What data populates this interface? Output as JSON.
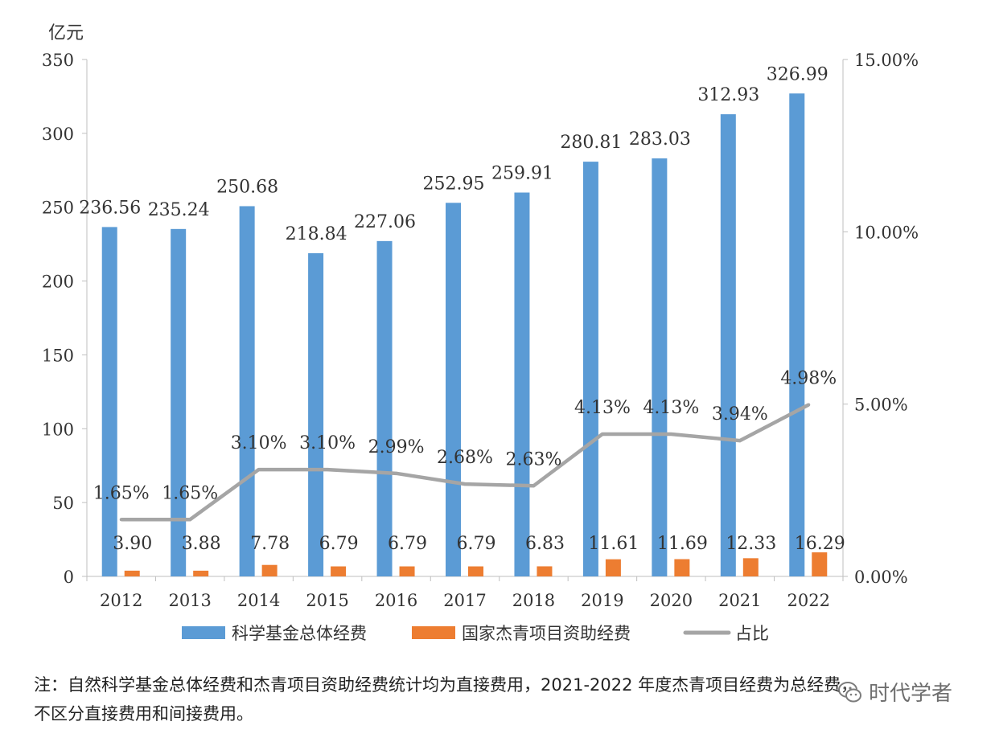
{
  "chart_data": {
    "type": "bar",
    "y_unit_label": "亿元",
    "categories": [
      "2012",
      "2013",
      "2014",
      "2015",
      "2016",
      "2017",
      "2018",
      "2019",
      "2020",
      "2021",
      "2022"
    ],
    "y_left": {
      "min": 0,
      "max": 350,
      "ticks": [
        0,
        50,
        100,
        150,
        200,
        250,
        300,
        350
      ],
      "tick_labels": [
        "0",
        "50",
        "100",
        "150",
        "200",
        "250",
        "300",
        "350"
      ]
    },
    "y_right": {
      "min": 0,
      "max": 15,
      "ticks": [
        0,
        5,
        10,
        15
      ],
      "tick_labels": [
        "0.00%",
        "5.00%",
        "10.00%",
        "15.00%"
      ]
    },
    "series": [
      {
        "name": "科学基金总体经费",
        "kind": "bar",
        "axis": "left",
        "color": "#5b9bd5",
        "values": [
          236.56,
          235.24,
          250.68,
          218.84,
          227.06,
          252.95,
          259.91,
          280.81,
          283.03,
          312.93,
          326.99
        ],
        "labels": [
          "236.56",
          "235.24",
          "250.68",
          "218.84",
          "227.06",
          "252.95",
          "259.91",
          "280.81",
          "283.03",
          "312.93",
          "326.99"
        ]
      },
      {
        "name": "国家杰青项目资助经费",
        "kind": "bar",
        "axis": "left",
        "color": "#ed7d31",
        "values": [
          3.9,
          3.88,
          7.78,
          6.79,
          6.79,
          6.79,
          6.83,
          11.61,
          11.69,
          12.33,
          16.29
        ],
        "labels": [
          "3.90",
          "3.88",
          "7.78",
          "6.79",
          "6.79",
          "6.79",
          "6.83",
          "11.61",
          "11.69",
          "12.33",
          "16.29"
        ]
      },
      {
        "name": "占比",
        "kind": "line",
        "axis": "right",
        "color": "#a5a5a5",
        "values": [
          1.65,
          1.65,
          3.1,
          3.1,
          2.99,
          2.68,
          2.63,
          4.13,
          4.13,
          3.94,
          4.98
        ],
        "labels": [
          "1.65%",
          "1.65%",
          "3.10%",
          "3.10%",
          "2.99%",
          "2.68%",
          "2.63%",
          "4.13%",
          "4.13%",
          "3.94%",
          "4.98%"
        ]
      }
    ],
    "legend": "bottom",
    "grid": false
  },
  "note": {
    "line1": "注：自然科学基金总体经费和杰青项目资助经费统计均为直接费用，2021-2022 年度杰青项目经费为总经费，",
    "line2": "不区分直接费用和间接费用。"
  },
  "watermark": {
    "text": "时代学者",
    "icon": "wechat-icon"
  }
}
